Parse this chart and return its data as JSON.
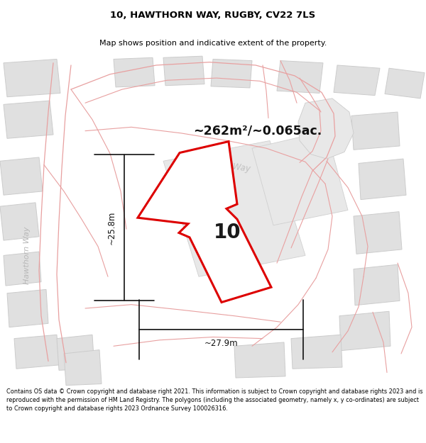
{
  "title": "10, HAWTHORN WAY, RUGBY, CV22 7LS",
  "subtitle": "Map shows position and indicative extent of the property.",
  "footer": "Contains OS data © Crown copyright and database right 2021. This information is subject to Crown copyright and database rights 2023 and is reproduced with the permission of HM Land Registry. The polygons (including the associated geometry, namely x, y co-ordinates) are subject to Crown copyright and database rights 2023 Ordnance Survey 100026316.",
  "area_label": "~262m²/~0.065ac.",
  "width_label": "~27.9m",
  "height_label": "~25.8m",
  "house_number": "10",
  "plot_fill": "#ffffff",
  "plot_edge_color": "#dd0000",
  "plot_edge_width": 2.2,
  "pink_line_color": "#e8a0a0",
  "gray_poly_fill": "#e0e0e0",
  "gray_poly_edge": "#cccccc",
  "map_bg": "#f7f7f7",
  "street_label_color": "#b0b0b0",
  "hawthorn_way_label": "Hawthorn Way"
}
